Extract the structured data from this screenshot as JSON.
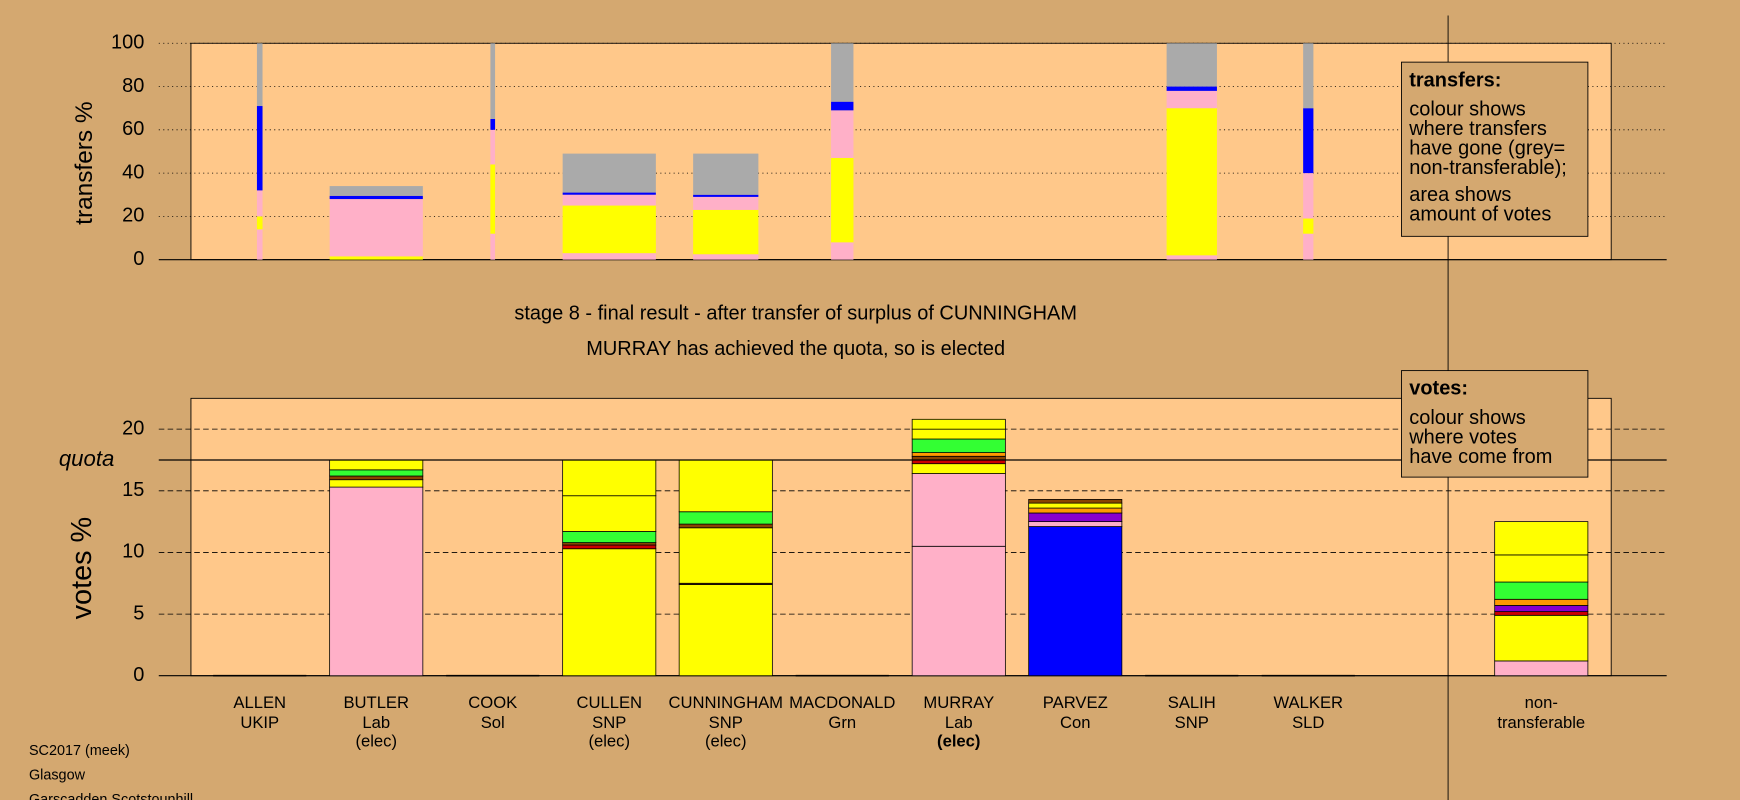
{
  "title": "stage 8 - final result - after transfer of surplus of CUNNINGHAM",
  "subtitle": "MURRAY has achieved the quota, so is elected",
  "candidates": [
    {
      "name": "ALLEN",
      "party": "UKIP"
    },
    {
      "name": "BUTLER",
      "party": "Lab",
      "status": "(elec)"
    },
    {
      "name": "COOK",
      "party": "Sol"
    },
    {
      "name": "CULLEN",
      "party": "SNP",
      "status": "(elec)"
    },
    {
      "name": "CUNNINGHAM",
      "party": "SNP",
      "status": "(elec)"
    },
    {
      "name": "MACDONALD",
      "party": "Grn"
    },
    {
      "name": "MURRAY",
      "party": "Lab",
      "status": "(elec)",
      "bold": true
    },
    {
      "name": "PARVEZ",
      "party": "Con"
    },
    {
      "name": "SALIH",
      "party": "SNP"
    },
    {
      "name": "WALKER",
      "party": "SLD"
    }
  ],
  "nontransferable_label": [
    "non-",
    "transferable"
  ],
  "transfers_legend": [
    "transfers:",
    "colour shows",
    "where transfers",
    "have gone (grey=",
    "non-transferable);",
    "area shows",
    "amount of votes"
  ],
  "votes_legend": [
    "votes:",
    "colour shows",
    "where votes",
    "have come from"
  ],
  "footer": [
    "SC2017 (meek)",
    "Glasgow",
    "Garscadden Scotstounhill"
  ],
  "chart_data": [
    {
      "type": "bar",
      "stacked": true,
      "ylabel": "transfers %",
      "ylim": [
        0,
        100
      ],
      "yticks": [
        0,
        20,
        40,
        60,
        80,
        100
      ],
      "grid": true,
      "bars": [
        {
          "amount": 6,
          "segments": [
            {
              "color": "#ffb0c8",
              "value": 14
            },
            {
              "color": "#ffff00",
              "value": 6
            },
            {
              "color": "#ffb0c8",
              "value": 12
            },
            {
              "color": "#0000ff",
              "value": 39
            },
            {
              "color": "#aaaaaa",
              "value": 29
            }
          ]
        },
        {
          "amount": 100,
          "segments": [
            {
              "color": "#ffff00",
              "value": 1.5
            },
            {
              "color": "#ffb0c8",
              "value": 26.5
            },
            {
              "color": "#0000ff",
              "value": 1.5
            },
            {
              "color": "#aaaaaa",
              "value": 4.5
            }
          ]
        },
        {
          "amount": 5,
          "segments": [
            {
              "color": "#ffb0c8",
              "value": 12
            },
            {
              "color": "#ffff00",
              "value": 32
            },
            {
              "color": "#ffb0c8",
              "value": 16
            },
            {
              "color": "#0000ff",
              "value": 5
            },
            {
              "color": "#aaaaaa",
              "value": 35
            }
          ]
        },
        {
          "amount": 100,
          "segments": [
            {
              "color": "#ffb0c8",
              "value": 3
            },
            {
              "color": "#ffff00",
              "value": 22
            },
            {
              "color": "#ffb0c8",
              "value": 5
            },
            {
              "color": "#0000ff",
              "value": 1
            },
            {
              "color": "#aaaaaa",
              "value": 18
            }
          ]
        },
        {
          "amount": 70,
          "segments": [
            {
              "color": "#ffb0c8",
              "value": 2.5
            },
            {
              "color": "#ffff00",
              "value": 20.5
            },
            {
              "color": "#ffb0c8",
              "value": 6
            },
            {
              "color": "#0000ff",
              "value": 1
            },
            {
              "color": "#aaaaaa",
              "value": 19
            }
          ]
        },
        {
          "amount": 24,
          "segments": [
            {
              "color": "#ffb0c8",
              "value": 8
            },
            {
              "color": "#ffff00",
              "value": 39
            },
            {
              "color": "#ffb0c8",
              "value": 22
            },
            {
              "color": "#0000ff",
              "value": 4
            },
            {
              "color": "#aaaaaa",
              "value": 27
            }
          ]
        },
        {
          "amount": 0,
          "segments": []
        },
        {
          "amount": 0,
          "segments": []
        },
        {
          "amount": 54,
          "segments": [
            {
              "color": "#ffb0c8",
              "value": 2
            },
            {
              "color": "#ffff00",
              "value": 68
            },
            {
              "color": "#ffb0c8",
              "value": 8
            },
            {
              "color": "#0000ff",
              "value": 2
            },
            {
              "color": "#aaaaaa",
              "value": 20
            }
          ]
        },
        {
          "amount": 11,
          "segments": [
            {
              "color": "#ffb0c8",
              "value": 12
            },
            {
              "color": "#ffff00",
              "value": 7
            },
            {
              "color": "#ffb0c8",
              "value": 21
            },
            {
              "color": "#0000ff",
              "value": 30
            },
            {
              "color": "#aaaaaa",
              "value": 30
            }
          ]
        }
      ]
    },
    {
      "type": "bar",
      "stacked": true,
      "ylabel": "votes %",
      "ylim": [
        0,
        22.5
      ],
      "yticks": [
        0,
        5,
        10,
        15,
        20
      ],
      "grid": true,
      "quota": 17.5,
      "quota_label": "quota",
      "bars": [
        {
          "segments": []
        },
        {
          "segments": [
            {
              "color": "#ffb0c8",
              "value": 15.3
            },
            {
              "color": "#ffff00",
              "value": 0.6
            },
            {
              "color": "#884400",
              "value": 0.3
            },
            {
              "color": "#33ff33",
              "value": 0.5
            },
            {
              "color": "#ffff00",
              "value": 0.8
            }
          ]
        },
        {
          "segments": []
        },
        {
          "segments": [
            {
              "color": "#ffff00",
              "value": 10.3
            },
            {
              "color": "#cc0000",
              "value": 0.3
            },
            {
              "color": "#884400",
              "value": 0.2
            },
            {
              "color": "#33ff33",
              "value": 0.9
            },
            {
              "color": "#ffff00",
              "value": 2.9
            },
            {
              "color": "#ffff00",
              "value": 2.9
            }
          ]
        },
        {
          "segments": [
            {
              "color": "#ffff00",
              "value": 7.4
            },
            {
              "color": "#884400",
              "value": 0.1
            },
            {
              "color": "#ffff00",
              "value": 4.5
            },
            {
              "color": "#884400",
              "value": 0.3
            },
            {
              "color": "#33ff33",
              "value": 1.0
            },
            {
              "color": "#ffff00",
              "value": 4.2
            }
          ]
        },
        {
          "segments": []
        },
        {
          "segments": [
            {
              "color": "#ffb0c8",
              "value": 10.5
            },
            {
              "color": "#ffb0c8",
              "value": 5.9
            },
            {
              "color": "#ffff00",
              "value": 0.8
            },
            {
              "color": "#cc0000",
              "value": 0.3
            },
            {
              "color": "#884400",
              "value": 0.3
            },
            {
              "color": "#ff9900",
              "value": 0.3
            },
            {
              "color": "#33ff33",
              "value": 1.1
            },
            {
              "color": "#ffff00",
              "value": 0.8
            },
            {
              "color": "#ffff00",
              "value": 0.8
            }
          ]
        },
        {
          "segments": [
            {
              "color": "#0000ff",
              "value": 12.1
            },
            {
              "color": "#ffb0c8",
              "value": 0.4
            },
            {
              "color": "#8800cc",
              "value": 0.7
            },
            {
              "color": "#ff9900",
              "value": 0.4
            },
            {
              "color": "#ffff00",
              "value": 0.4
            },
            {
              "color": "#884400",
              "value": 0.3
            }
          ]
        },
        {
          "segments": []
        },
        {
          "segments": []
        },
        {
          "segments": [
            {
              "color": "#ffb0c8",
              "value": 1.2
            },
            {
              "color": "#ffff00",
              "value": 3.7
            },
            {
              "color": "#cc0000",
              "value": 0.3
            },
            {
              "color": "#8800cc",
              "value": 0.5
            },
            {
              "color": "#ff9900",
              "value": 0.5
            },
            {
              "color": "#33ff33",
              "value": 1.4
            },
            {
              "color": "#ffff00",
              "value": 2.2
            },
            {
              "color": "#ffff00",
              "value": 2.7
            }
          ]
        }
      ]
    }
  ]
}
